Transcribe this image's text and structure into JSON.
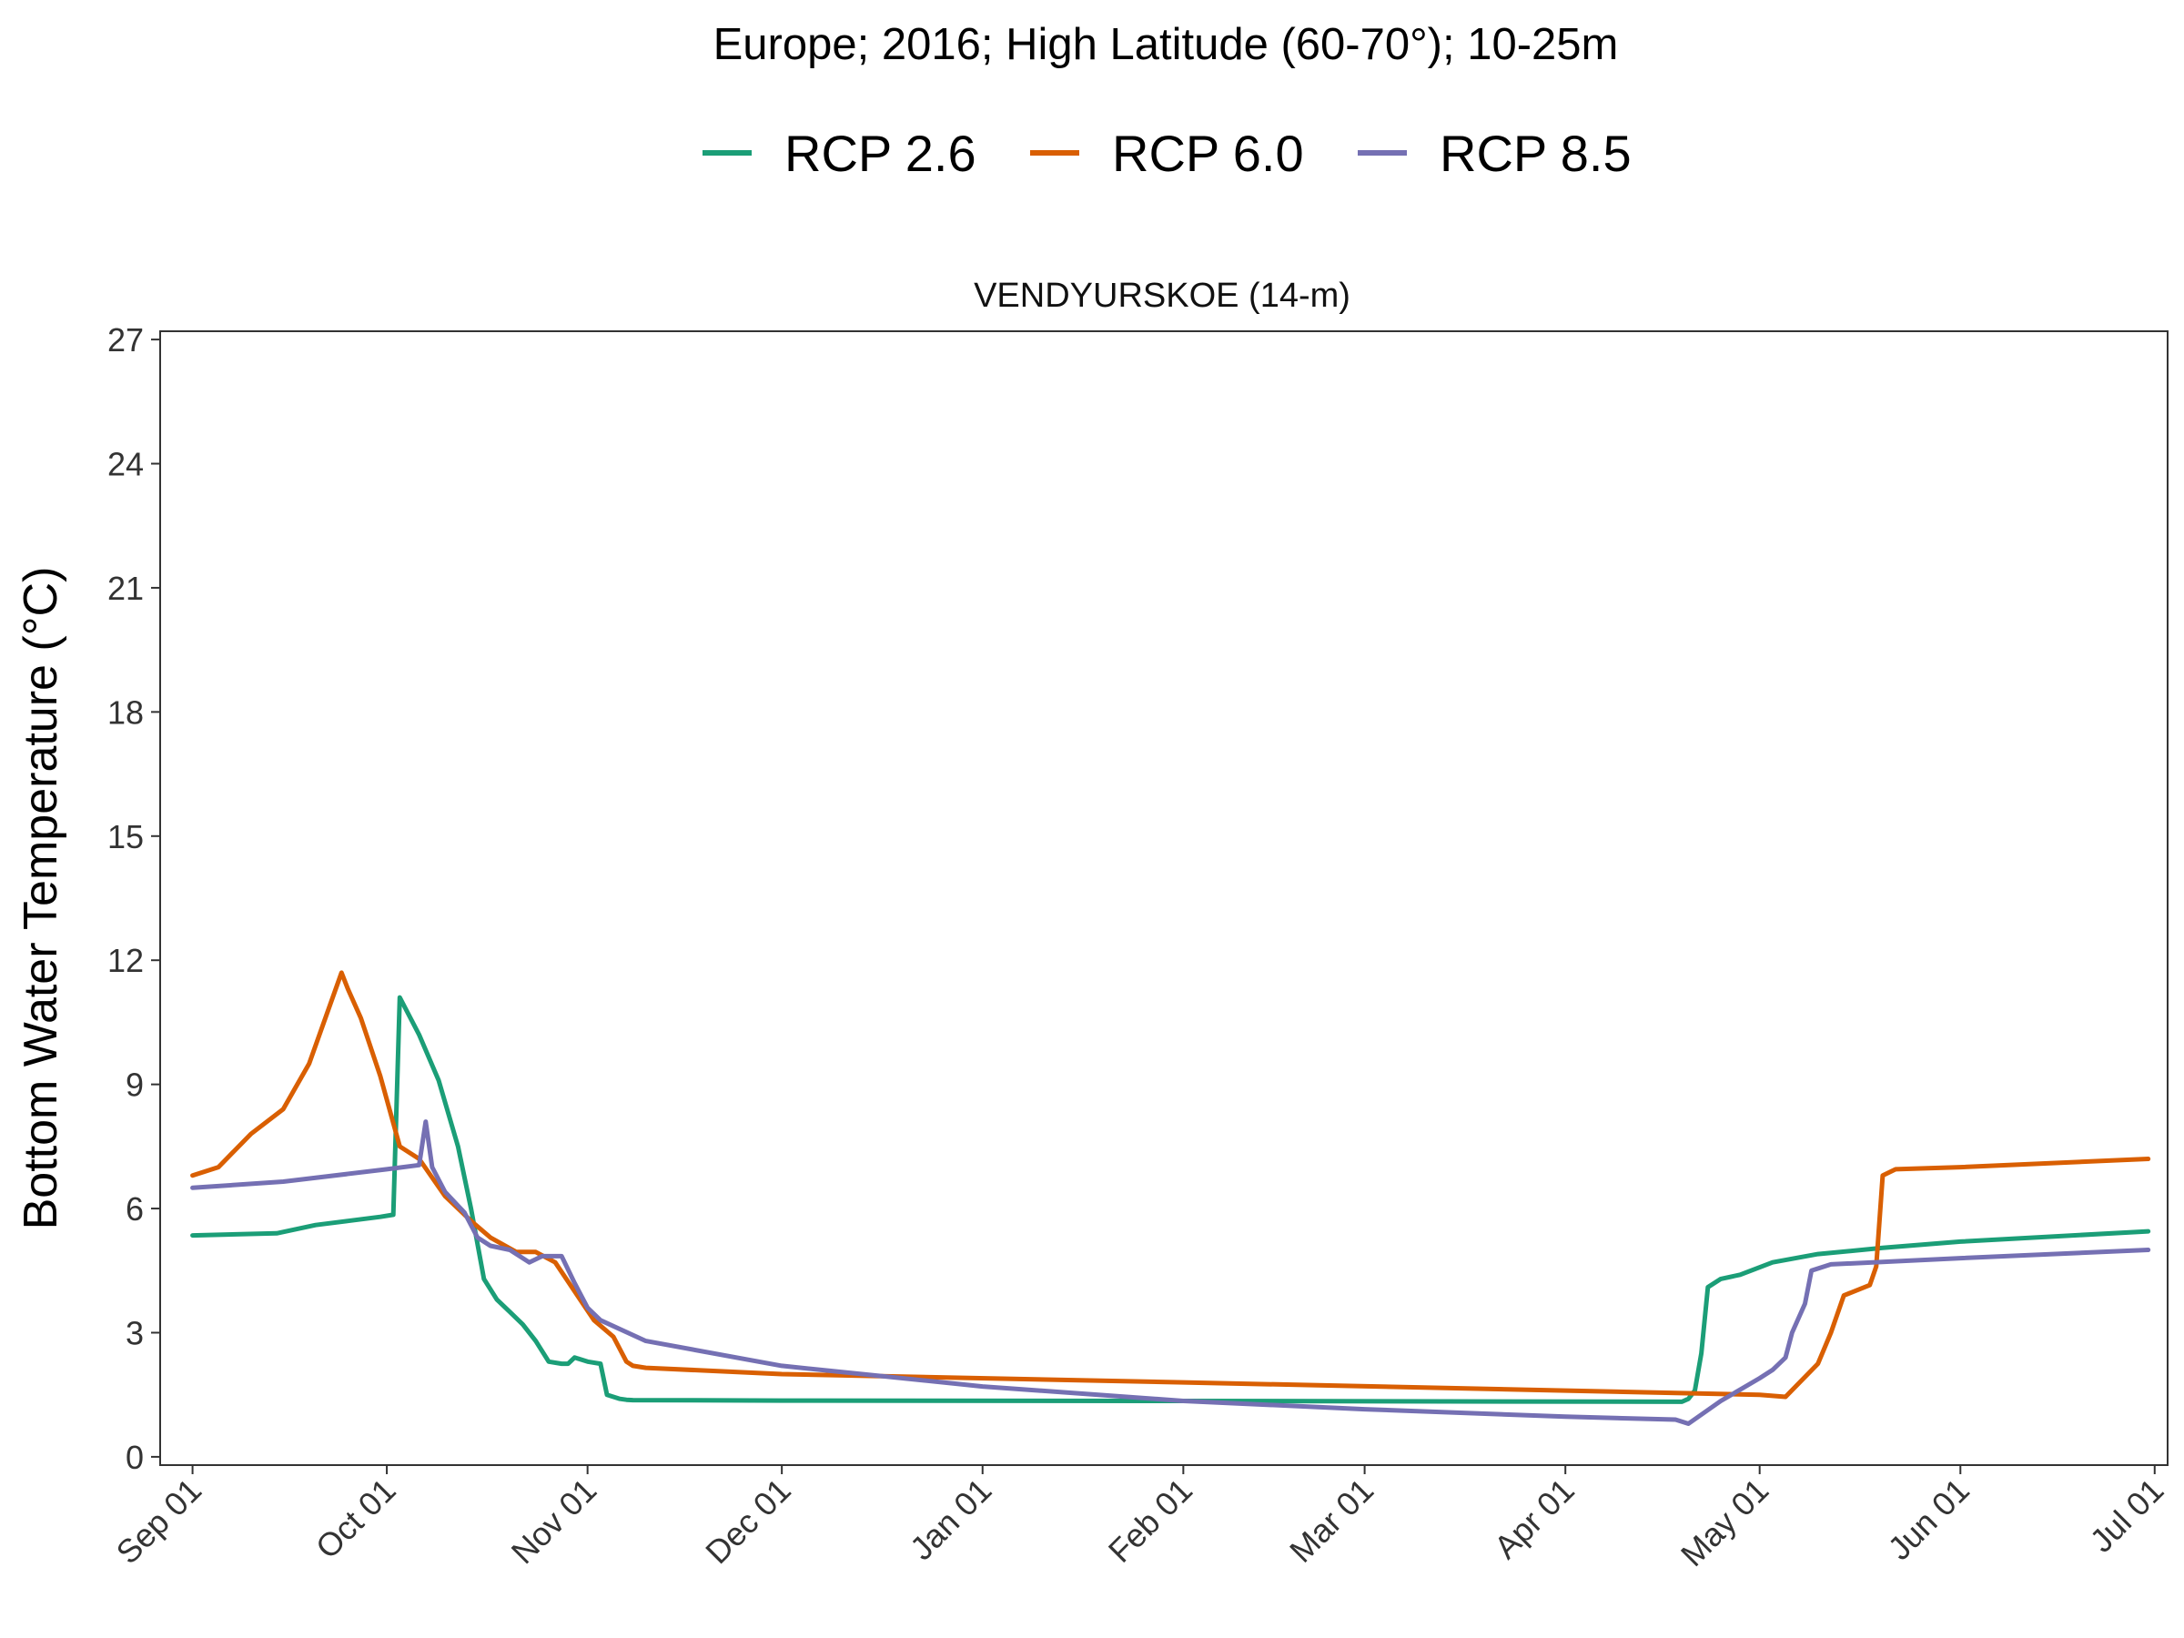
{
  "chart_data": {
    "type": "line",
    "title": "Europe;  2016;  High Latitude (60-70°);  10-25m",
    "subtitle": "VENDYURSKOE (14-m)",
    "xlabel": "",
    "ylabel": "Bottom Water Temperature (°C)",
    "ylim": [
      0,
      27
    ],
    "yticks": [
      0,
      3,
      6,
      9,
      12,
      15,
      18,
      21,
      24,
      27
    ],
    "xlim": [
      "2016-08-27",
      "2017-07-03"
    ],
    "xticks": [
      "2016-09-01",
      "2016-10-01",
      "2016-11-01",
      "2016-12-01",
      "2017-01-01",
      "2017-02-01",
      "2017-03-01",
      "2017-04-01",
      "2017-05-01",
      "2017-06-01",
      "2017-07-01"
    ],
    "xtick_labels": [
      "Sep 01",
      "Oct 01",
      "Nov 01",
      "Dec 01",
      "Jan 01",
      "Feb 01",
      "Mar 01",
      "Apr 01",
      "May 01",
      "Jun 01",
      "Jul 01"
    ],
    "grid": false,
    "legend_position": "top",
    "series": [
      {
        "name": "RCP 2.6",
        "color": "#1b9e77",
        "x": [
          "2016-09-01",
          "2016-09-14",
          "2016-09-20",
          "2016-09-25",
          "2016-09-30",
          "2016-10-02",
          "2016-10-03",
          "2016-10-06",
          "2016-10-09",
          "2016-10-12",
          "2016-10-14",
          "2016-10-16",
          "2016-10-18",
          "2016-10-20",
          "2016-10-22",
          "2016-10-24",
          "2016-10-26",
          "2016-10-28",
          "2016-10-29",
          "2016-10-30",
          "2016-11-01",
          "2016-11-03",
          "2016-11-04",
          "2016-11-06",
          "2016-11-07",
          "2016-11-08",
          "2016-12-01",
          "2017-02-01",
          "2017-04-19",
          "2017-04-20",
          "2017-04-21",
          "2017-04-22",
          "2017-04-23",
          "2017-04-25",
          "2017-04-28",
          "2017-05-03",
          "2017-05-10",
          "2017-05-20",
          "2017-06-01",
          "2017-06-30"
        ],
        "values": [
          5.35,
          5.4,
          5.6,
          5.7,
          5.8,
          5.85,
          11.1,
          10.2,
          9.1,
          7.5,
          6.0,
          4.3,
          3.8,
          3.5,
          3.2,
          2.8,
          2.3,
          2.25,
          2.25,
          2.4,
          2.3,
          2.25,
          1.5,
          1.4,
          1.38,
          1.37,
          1.36,
          1.35,
          1.33,
          1.4,
          1.6,
          2.5,
          4.1,
          4.3,
          4.4,
          4.7,
          4.9,
          5.05,
          5.2,
          5.45
        ]
      },
      {
        "name": "RCP 6.0",
        "color": "#d95f02",
        "x": [
          "2016-09-01",
          "2016-09-05",
          "2016-09-10",
          "2016-09-15",
          "2016-09-19",
          "2016-09-24",
          "2016-09-25",
          "2016-09-27",
          "2016-09-30",
          "2016-10-03",
          "2016-10-06",
          "2016-10-10",
          "2016-10-14",
          "2016-10-17",
          "2016-10-21",
          "2016-10-24",
          "2016-10-27",
          "2016-10-30",
          "2016-11-02",
          "2016-11-05",
          "2016-11-07",
          "2016-11-08",
          "2016-11-10",
          "2016-12-01",
          "2017-02-01",
          "2017-04-01",
          "2017-05-01",
          "2017-05-05",
          "2017-05-10",
          "2017-05-12",
          "2017-05-14",
          "2017-05-18",
          "2017-05-19",
          "2017-05-20",
          "2017-05-22",
          "2017-06-01",
          "2017-06-30"
        ],
        "values": [
          6.8,
          7.0,
          7.8,
          8.4,
          9.5,
          11.7,
          11.3,
          10.6,
          9.2,
          7.5,
          7.2,
          6.3,
          5.7,
          5.3,
          4.95,
          4.95,
          4.7,
          4.0,
          3.3,
          2.9,
          2.3,
          2.2,
          2.15,
          2.0,
          1.8,
          1.6,
          1.5,
          1.45,
          2.25,
          3.0,
          3.9,
          4.15,
          4.6,
          6.8,
          6.95,
          7.0,
          7.2
        ]
      },
      {
        "name": "RCP 8.5",
        "color": "#7570b3",
        "x": [
          "2016-09-01",
          "2016-09-15",
          "2016-10-01",
          "2016-10-06",
          "2016-10-07",
          "2016-10-08",
          "2016-10-10",
          "2016-10-13",
          "2016-10-15",
          "2016-10-17",
          "2016-10-20",
          "2016-10-23",
          "2016-10-25",
          "2016-10-28",
          "2016-10-30",
          "2016-11-01",
          "2016-11-03",
          "2016-11-10",
          "2016-12-01",
          "2017-01-01",
          "2017-02-01",
          "2017-03-01",
          "2017-04-01",
          "2017-04-18",
          "2017-04-20",
          "2017-04-25",
          "2017-05-01",
          "2017-05-03",
          "2017-05-05",
          "2017-05-06",
          "2017-05-08",
          "2017-05-09",
          "2017-05-12",
          "2017-06-01",
          "2017-06-30"
        ],
        "values": [
          6.5,
          6.65,
          6.95,
          7.05,
          8.1,
          7.0,
          6.4,
          5.9,
          5.3,
          5.1,
          5.0,
          4.7,
          4.85,
          4.85,
          4.2,
          3.6,
          3.3,
          2.8,
          2.2,
          1.7,
          1.35,
          1.15,
          0.97,
          0.9,
          0.8,
          1.35,
          1.9,
          2.1,
          2.4,
          3.0,
          3.7,
          4.5,
          4.65,
          4.8,
          5.0
        ]
      }
    ]
  }
}
